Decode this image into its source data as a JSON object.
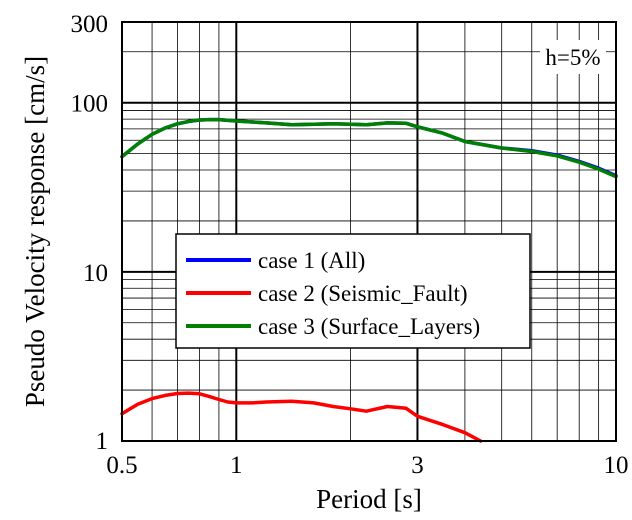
{
  "chart_data": {
    "type": "line",
    "xlabel": "Period [s]",
    "ylabel": "Pseudo Velocity response [cm/s]",
    "xscale": "log",
    "yscale": "log",
    "xlim": [
      0.5,
      10
    ],
    "ylim": [
      1,
      300
    ],
    "x_tick_labels": [
      {
        "value": 0.5,
        "label": "0.5"
      },
      {
        "value": 1,
        "label": "1"
      },
      {
        "value": 3,
        "label": "3"
      },
      {
        "value": 10,
        "label": "10"
      }
    ],
    "y_tick_labels": [
      {
        "value": 1,
        "label": "1"
      },
      {
        "value": 10,
        "label": "10"
      },
      {
        "value": 100,
        "label": "100"
      },
      {
        "value": 300,
        "label": "300"
      }
    ],
    "grid": true,
    "annotation": "h=5%",
    "legend_position": "center-left",
    "series": [
      {
        "name": "case 1 (All)",
        "color": "#0000ff",
        "x": [
          0.5,
          0.55,
          0.6,
          0.65,
          0.7,
          0.75,
          0.8,
          0.85,
          0.9,
          1.0,
          1.2,
          1.4,
          1.6,
          1.8,
          2.0,
          2.2,
          2.5,
          2.8,
          3.0,
          3.5,
          4.0,
          5.0,
          6.0,
          7.0,
          8.0,
          9.0,
          10.0
        ],
        "y": [
          48,
          57,
          65,
          71,
          75,
          77.5,
          79,
          79.5,
          79.5,
          78,
          76,
          74,
          74.5,
          75,
          74.5,
          74,
          76,
          75.5,
          72,
          66,
          59,
          54,
          52,
          49,
          45,
          41,
          37
        ]
      },
      {
        "name": "case 2 (Seismic_Fault)",
        "color": "#ff0000",
        "x": [
          0.5,
          0.55,
          0.6,
          0.65,
          0.7,
          0.75,
          0.8,
          0.85,
          0.9,
          0.95,
          1.0,
          1.1,
          1.2,
          1.4,
          1.6,
          1.8,
          2.0,
          2.2,
          2.5,
          2.8,
          3.0,
          3.5,
          4.0,
          4.4
        ],
        "y": [
          1.45,
          1.65,
          1.78,
          1.86,
          1.91,
          1.92,
          1.9,
          1.83,
          1.76,
          1.7,
          1.68,
          1.68,
          1.7,
          1.72,
          1.68,
          1.6,
          1.55,
          1.5,
          1.6,
          1.56,
          1.4,
          1.25,
          1.12,
          1.0
        ]
      },
      {
        "name": "case 3 (Surface_Layers)",
        "color": "#008000",
        "x": [
          0.5,
          0.55,
          0.6,
          0.65,
          0.7,
          0.75,
          0.8,
          0.85,
          0.9,
          1.0,
          1.2,
          1.4,
          1.6,
          1.8,
          2.0,
          2.2,
          2.5,
          2.8,
          3.0,
          3.5,
          4.0,
          5.0,
          6.0,
          7.0,
          8.0,
          9.0,
          10.0
        ],
        "y": [
          48,
          57,
          65,
          71,
          75,
          77.5,
          79,
          79.5,
          79.5,
          78,
          76,
          74,
          74.5,
          75,
          74.5,
          74,
          76,
          75.5,
          72,
          66,
          59,
          54,
          51.5,
          48.5,
          44.5,
          40.5,
          36.5
        ]
      }
    ]
  }
}
